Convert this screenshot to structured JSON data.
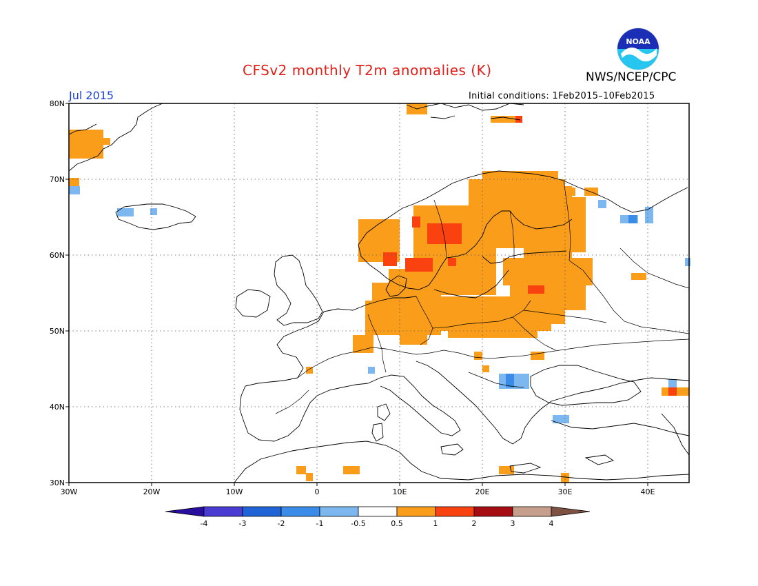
{
  "header": {
    "title": "CFSv2 monthly T2m anomalies (K)",
    "title_color": "#e0201a",
    "agency": "NWS/NCEP/CPC",
    "month": "Jul 2015",
    "initial_conditions": "Initial conditions: 1Feb2015–10Feb2015"
  },
  "logo": {
    "icon": "noaa-logo-icon",
    "text": "NOAA"
  },
  "map": {
    "lon_range": [
      -30,
      45
    ],
    "lat_range": [
      30,
      80
    ],
    "lat_labels": [
      "80N",
      "70N",
      "60N",
      "50N",
      "40N",
      "30N"
    ],
    "lon_labels": [
      "30W",
      "20W",
      "10W",
      "0",
      "10E",
      "20E",
      "30E",
      "40E"
    ],
    "grid": "dotted"
  },
  "colorbar": {
    "colors": [
      "#2a0ea0",
      "#4a3cd3",
      "#1f63d6",
      "#3a8ce8",
      "#7cb8ef",
      "#ffffff",
      "#f99d1b",
      "#f9420f",
      "#a60d12",
      "#c69f8c",
      "#7d5242"
    ],
    "labels": [
      "-4",
      "-3",
      "-2",
      "-1",
      "-0.5",
      "0.5",
      "1",
      "2",
      "3",
      "4"
    ]
  },
  "anomaly_levels": {
    "pos1": "#f99d1b",
    "pos2": "#f9420f",
    "neg1": "#7cb8ef",
    "neg2": "#3a8ce8"
  }
}
